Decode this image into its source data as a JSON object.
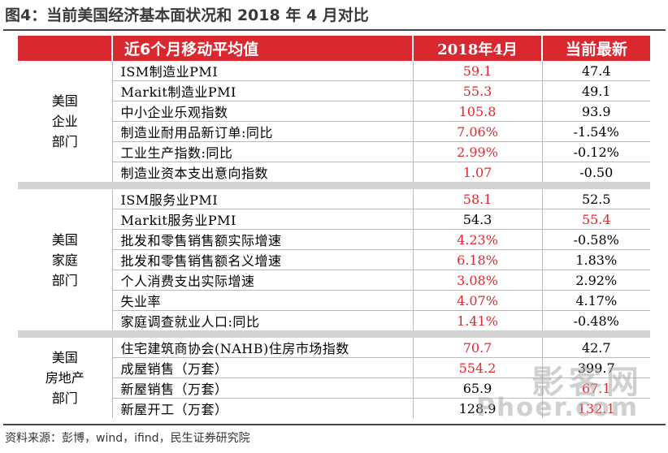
{
  "figure_title": "图4：当前美国经济基本面状况和 2018 年 4 月对比",
  "header": {
    "indicator": "近6个月移动平均值",
    "col_a": "2018年4月",
    "col_b": "当前最新"
  },
  "colors": {
    "header_bg": "#d9282f",
    "highlight": "#e8252b",
    "separator": "#d3d3d3"
  },
  "groups": [
    {
      "category": [
        "美国",
        "企业",
        "部门"
      ],
      "rows": [
        {
          "indicator": "ISM制造业PMI",
          "a": "59.1",
          "b": "47.4",
          "a_red": true,
          "b_red": false
        },
        {
          "indicator": "Markit制造业PMI",
          "a": "55.3",
          "b": "49.1",
          "a_red": true,
          "b_red": false
        },
        {
          "indicator": "中小企业乐观指数",
          "a": "105.8",
          "b": "93.9",
          "a_red": true,
          "b_red": false
        },
        {
          "indicator": "制造业耐用品新订单:同比",
          "a": "7.06%",
          "b": "-1.54%",
          "a_red": true,
          "b_red": false
        },
        {
          "indicator": "工业生产指数:同比",
          "a": "2.99%",
          "b": "-0.12%",
          "a_red": true,
          "b_red": false
        },
        {
          "indicator": "制造业资本支出意向指数",
          "a": "1.07",
          "b": "-0.50",
          "a_red": true,
          "b_red": false
        }
      ]
    },
    {
      "category": [
        "美国",
        "家庭",
        "部门"
      ],
      "rows": [
        {
          "indicator": "ISM服务业PMI",
          "a": "58.1",
          "b": "52.5",
          "a_red": true,
          "b_red": false
        },
        {
          "indicator": "Markit服务业PMI",
          "a": "54.3",
          "b": "55.4",
          "a_red": false,
          "b_red": true
        },
        {
          "indicator": "批发和零售销售额实际增速",
          "a": "4.23%",
          "b": "-0.58%",
          "a_red": true,
          "b_red": false
        },
        {
          "indicator": "批发和零售销售额名义增速",
          "a": "6.18%",
          "b": "1.83%",
          "a_red": true,
          "b_red": false
        },
        {
          "indicator": "个人消费支出实际增速",
          "a": "3.08%",
          "b": "2.92%",
          "a_red": true,
          "b_red": false
        },
        {
          "indicator": "失业率",
          "a": "4.07%",
          "b": "4.17%",
          "a_red": true,
          "b_red": false
        },
        {
          "indicator": "家庭调查就业人口:同比",
          "a": "1.41%",
          "b": "-0.48%",
          "a_red": true,
          "b_red": false
        }
      ]
    },
    {
      "category": [
        "美国",
        "房地产",
        "部门"
      ],
      "rows": [
        {
          "indicator": "住宅建筑商协会(NAHB)住房市场指数",
          "a": "70.7",
          "b": "42.7",
          "a_red": true,
          "b_red": false
        },
        {
          "indicator": "成屋销售（万套）",
          "a": "554.2",
          "b": "399.7",
          "a_red": true,
          "b_red": false
        },
        {
          "indicator": "新屋销售（万套）",
          "a": "65.9",
          "b": "67.1",
          "a_red": false,
          "b_red": true
        },
        {
          "indicator": "新屋开工（万套）",
          "a": "128.9",
          "b": "132.1",
          "a_red": false,
          "b_red": true
        }
      ]
    }
  ],
  "source": "资料来源：彭博，wind，ifind，民生证券研究院",
  "watermark": {
    "cn": "影客网",
    "en": "Phoer.com"
  }
}
